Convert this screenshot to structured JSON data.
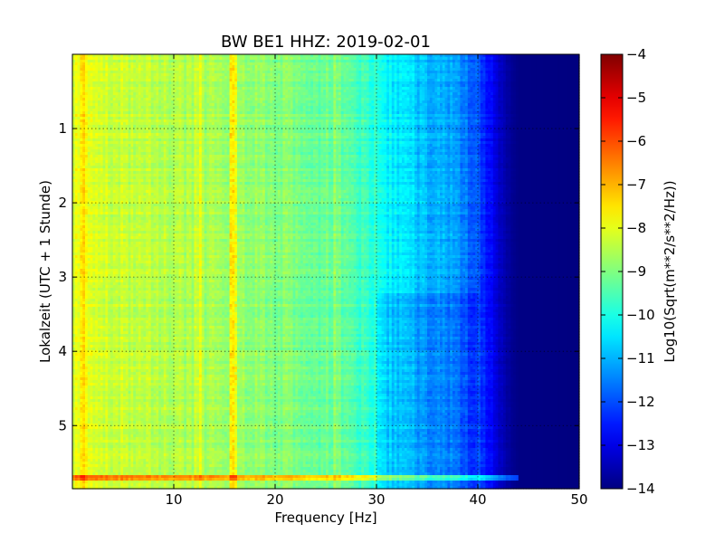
{
  "chart_data": {
    "type": "heatmap",
    "title": "BW BE1 HHZ: 2019-02-01",
    "xlabel": "Frequency [Hz]",
    "ylabel": "Lokalzeit (UTC + 1 Stunde)",
    "colorbar_label": "Log10(Sqrt(m**2/s**2/Hz))",
    "xlim": [
      0,
      50
    ],
    "ylim": [
      5.85,
      0
    ],
    "clim": [
      -14,
      -4
    ],
    "colormap": "jet",
    "grid": true,
    "x_ticks": [
      10,
      20,
      30,
      40,
      50
    ],
    "x_tick_labels": [
      "10",
      "20",
      "30",
      "40",
      "50"
    ],
    "y_ticks": [
      1,
      2,
      3,
      4,
      5
    ],
    "y_tick_labels": [
      "1",
      "2",
      "3",
      "4",
      "5"
    ],
    "colorbar_ticks": [
      -4,
      -5,
      -6,
      -7,
      -8,
      -9,
      -10,
      -11,
      -12,
      -13,
      -14
    ],
    "colorbar_tick_labels": [
      "−4",
      "−5",
      "−6",
      "−7",
      "−8",
      "−9",
      "−10",
      "−11",
      "−12",
      "−13",
      "−14"
    ],
    "frequency_profile": {
      "x": [
        0,
        1,
        2,
        5,
        10,
        15,
        20,
        25,
        28,
        30,
        31,
        33,
        35,
        38,
        40,
        41,
        42,
        43,
        44,
        50
      ],
      "level": [
        -8.1,
        -7.9,
        -8.1,
        -8.3,
        -8.5,
        -8.7,
        -8.9,
        -9.2,
        -9.5,
        -9.9,
        -10.3,
        -10.6,
        -10.9,
        -11.3,
        -12.0,
        -12.6,
        -13.2,
        -13.7,
        -13.95,
        -14.0
      ]
    },
    "features": [
      {
        "type": "vertical_band",
        "x": 15.8,
        "delta": 1.2
      },
      {
        "type": "vertical_band",
        "x": 12.3,
        "delta": 0.6
      },
      {
        "type": "vertical_band",
        "x": 1.2,
        "delta": 0.5
      },
      {
        "type": "vertical_band",
        "x": 26.2,
        "delta": 0.4
      },
      {
        "type": "horizontal_band",
        "y": 5.7,
        "x_end": 44,
        "delta": 1.8
      },
      {
        "type": "regime_change",
        "y": 3.2,
        "x_from": 30,
        "x_to": 40,
        "delta": -0.4
      }
    ]
  }
}
